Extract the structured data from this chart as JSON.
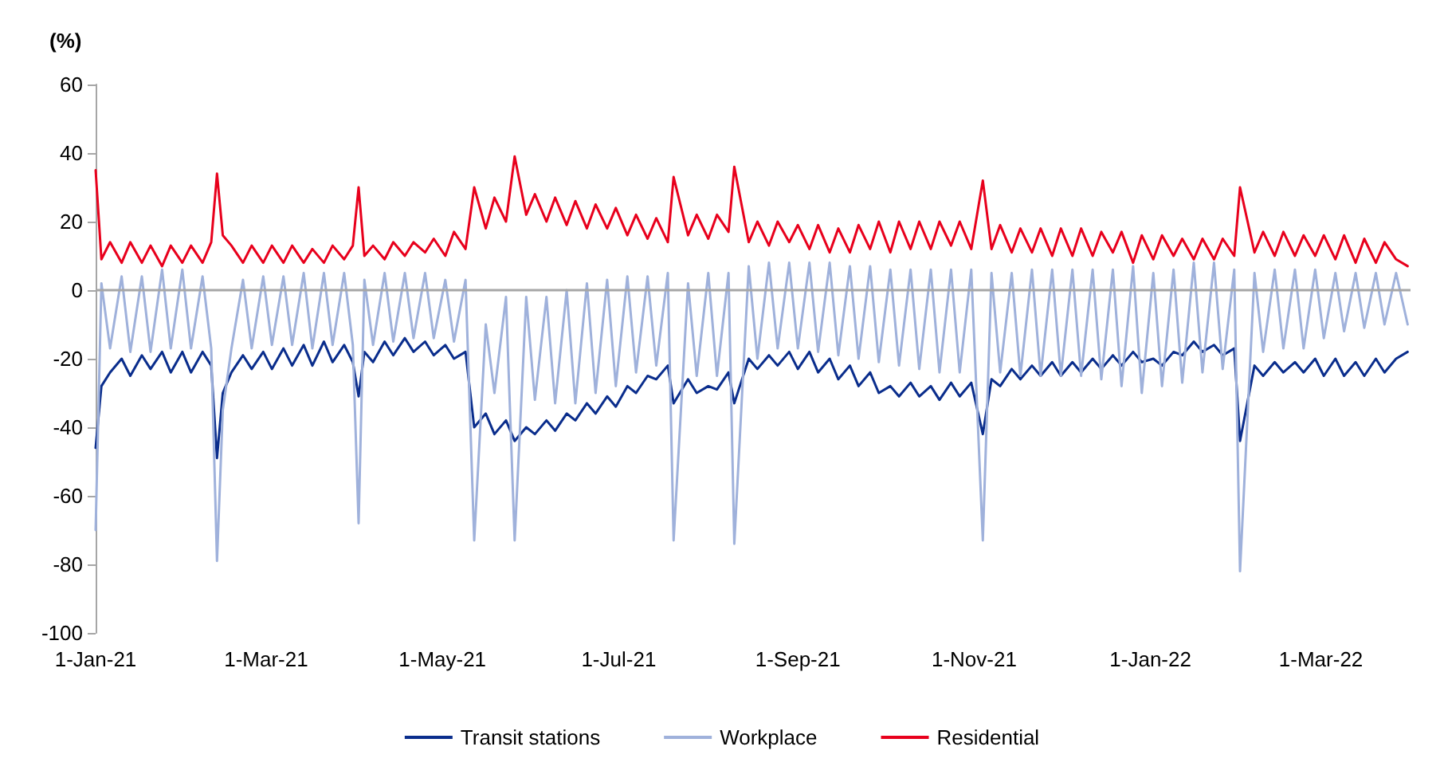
{
  "chart_data": {
    "type": "line",
    "ylabel": "(%)",
    "x": [
      "2021-01-01",
      "2021-01-03",
      "2021-01-06",
      "2021-01-10",
      "2021-01-13",
      "2021-01-17",
      "2021-01-20",
      "2021-01-24",
      "2021-01-27",
      "2021-01-31",
      "2021-02-03",
      "2021-02-07",
      "2021-02-10",
      "2021-02-12",
      "2021-02-14",
      "2021-02-17",
      "2021-02-21",
      "2021-02-24",
      "2021-02-28",
      "2021-03-03",
      "2021-03-07",
      "2021-03-10",
      "2021-03-14",
      "2021-03-17",
      "2021-03-21",
      "2021-03-24",
      "2021-03-28",
      "2021-03-31",
      "2021-04-02",
      "2021-04-04",
      "2021-04-07",
      "2021-04-11",
      "2021-04-14",
      "2021-04-18",
      "2021-04-21",
      "2021-04-25",
      "2021-04-28",
      "2021-05-02",
      "2021-05-05",
      "2021-05-09",
      "2021-05-12",
      "2021-05-16",
      "2021-05-19",
      "2021-05-23",
      "2021-05-26",
      "2021-05-30",
      "2021-06-02",
      "2021-06-06",
      "2021-06-09",
      "2021-06-13",
      "2021-06-16",
      "2021-06-20",
      "2021-06-23",
      "2021-06-27",
      "2021-06-30",
      "2021-07-04",
      "2021-07-07",
      "2021-07-11",
      "2021-07-14",
      "2021-07-18",
      "2021-07-20",
      "2021-07-25",
      "2021-07-28",
      "2021-08-01",
      "2021-08-04",
      "2021-08-08",
      "2021-08-10",
      "2021-08-15",
      "2021-08-18",
      "2021-08-22",
      "2021-08-25",
      "2021-08-29",
      "2021-09-01",
      "2021-09-05",
      "2021-09-08",
      "2021-09-12",
      "2021-09-15",
      "2021-09-19",
      "2021-09-22",
      "2021-09-26",
      "2021-09-29",
      "2021-10-03",
      "2021-10-06",
      "2021-10-10",
      "2021-10-13",
      "2021-10-17",
      "2021-10-20",
      "2021-10-24",
      "2021-10-27",
      "2021-10-31",
      "2021-11-04",
      "2021-11-07",
      "2021-11-10",
      "2021-11-14",
      "2021-11-17",
      "2021-11-21",
      "2021-11-24",
      "2021-11-28",
      "2021-12-01",
      "2021-12-05",
      "2021-12-08",
      "2021-12-12",
      "2021-12-15",
      "2021-12-19",
      "2021-12-22",
      "2021-12-26",
      "2021-12-29",
      "2022-01-02",
      "2022-01-05",
      "2022-01-09",
      "2022-01-12",
      "2022-01-16",
      "2022-01-19",
      "2022-01-23",
      "2022-01-26",
      "2022-01-30",
      "2022-02-01",
      "2022-02-06",
      "2022-02-09",
      "2022-02-13",
      "2022-02-16",
      "2022-02-20",
      "2022-02-23",
      "2022-02-27",
      "2022-03-02",
      "2022-03-06",
      "2022-03-09",
      "2022-03-13",
      "2022-03-16",
      "2022-03-20",
      "2022-03-23",
      "2022-03-27",
      "2022-03-31"
    ],
    "series": [
      {
        "name": "Transit stations",
        "color": "#0a2d8c",
        "values": [
          -46,
          -28,
          -24,
          -20,
          -25,
          -19,
          -23,
          -18,
          -24,
          -18,
          -24,
          -18,
          -22,
          -49,
          -30,
          -24,
          -19,
          -23,
          -18,
          -23,
          -17,
          -22,
          -16,
          -22,
          -15,
          -21,
          -16,
          -21,
          -31,
          -18,
          -21,
          -15,
          -19,
          -14,
          -18,
          -15,
          -19,
          -16,
          -20,
          -18,
          -40,
          -36,
          -42,
          -38,
          -44,
          -40,
          -42,
          -38,
          -41,
          -36,
          -38,
          -33,
          -36,
          -31,
          -34,
          -28,
          -30,
          -25,
          -26,
          -22,
          -33,
          -26,
          -30,
          -28,
          -29,
          -24,
          -33,
          -20,
          -23,
          -19,
          -22,
          -18,
          -23,
          -18,
          -24,
          -20,
          -26,
          -22,
          -28,
          -24,
          -30,
          -28,
          -31,
          -27,
          -31,
          -28,
          -32,
          -27,
          -31,
          -27,
          -42,
          -26,
          -28,
          -23,
          -26,
          -22,
          -25,
          -21,
          -25,
          -21,
          -24,
          -20,
          -23,
          -19,
          -22,
          -18,
          -21,
          -20,
          -22,
          -18,
          -19,
          -15,
          -18,
          -16,
          -19,
          -17,
          -44,
          -22,
          -25,
          -21,
          -24,
          -21,
          -24,
          -20,
          -25,
          -20,
          -25,
          -21,
          -25,
          -20,
          -24,
          -20,
          -18
        ]
      },
      {
        "name": "Workplace",
        "color": "#9fb1db",
        "values": [
          -70,
          2,
          -17,
          4,
          -18,
          4,
          -18,
          6,
          -17,
          6,
          -17,
          4,
          -17,
          -79,
          -35,
          -17,
          3,
          -17,
          4,
          -16,
          4,
          -16,
          5,
          -17,
          5,
          -16,
          5,
          -16,
          -68,
          3,
          -16,
          5,
          -15,
          5,
          -14,
          5,
          -14,
          3,
          -15,
          3,
          -73,
          -10,
          -30,
          -2,
          -73,
          -2,
          -32,
          -2,
          -33,
          0,
          -33,
          2,
          -30,
          3,
          -28,
          4,
          -24,
          4,
          -22,
          5,
          -73,
          2,
          -25,
          5,
          -25,
          5,
          -74,
          7,
          -20,
          8,
          -17,
          8,
          -17,
          8,
          -18,
          8,
          -19,
          7,
          -20,
          7,
          -21,
          6,
          -22,
          6,
          -23,
          6,
          -24,
          6,
          -24,
          6,
          -73,
          5,
          -24,
          5,
          -25,
          6,
          -25,
          6,
          -25,
          6,
          -25,
          6,
          -26,
          6,
          -28,
          7,
          -30,
          5,
          -28,
          6,
          -27,
          8,
          -24,
          8,
          -23,
          6,
          -82,
          5,
          -18,
          6,
          -17,
          6,
          -17,
          6,
          -14,
          5,
          -12,
          5,
          -11,
          5,
          -10,
          5,
          -10
        ]
      },
      {
        "name": "Residential",
        "color": "#e8001c",
        "values": [
          35,
          9,
          14,
          8,
          14,
          8,
          13,
          7,
          13,
          8,
          13,
          8,
          14,
          34,
          16,
          13,
          8,
          13,
          8,
          13,
          8,
          13,
          8,
          12,
          8,
          13,
          9,
          13,
          30,
          10,
          13,
          9,
          14,
          10,
          14,
          11,
          15,
          10,
          17,
          12,
          30,
          18,
          27,
          20,
          39,
          22,
          28,
          20,
          27,
          19,
          26,
          18,
          25,
          18,
          24,
          16,
          22,
          15,
          21,
          14,
          33,
          16,
          22,
          15,
          22,
          17,
          36,
          14,
          20,
          13,
          20,
          14,
          19,
          12,
          19,
          11,
          18,
          11,
          19,
          12,
          20,
          11,
          20,
          12,
          20,
          12,
          20,
          13,
          20,
          12,
          32,
          12,
          19,
          11,
          18,
          11,
          18,
          10,
          18,
          10,
          18,
          10,
          17,
          11,
          17,
          8,
          16,
          9,
          16,
          10,
          15,
          9,
          15,
          9,
          15,
          10,
          30,
          11,
          17,
          10,
          17,
          10,
          16,
          10,
          16,
          9,
          16,
          8,
          15,
          8,
          14,
          9,
          7
        ]
      }
    ],
    "xlim": [
      "2021-01-01",
      "2022-04-01"
    ],
    "xticks": [
      {
        "value": "2021-01-01",
        "label": "1-Jan-21"
      },
      {
        "value": "2021-03-01",
        "label": "1-Mar-21"
      },
      {
        "value": "2021-05-01",
        "label": "1-May-21"
      },
      {
        "value": "2021-07-01",
        "label": "1-Jul-21"
      },
      {
        "value": "2021-09-01",
        "label": "1-Sep-21"
      },
      {
        "value": "2021-11-01",
        "label": "1-Nov-21"
      },
      {
        "value": "2022-01-01",
        "label": "1-Jan-22"
      },
      {
        "value": "2022-03-01",
        "label": "1-Mar-22"
      }
    ],
    "ylim": [
      -100,
      60
    ],
    "yticks": [
      -100,
      -80,
      -60,
      -40,
      -20,
      0,
      20,
      40,
      60
    ],
    "ref_lines": [
      {
        "axis": "y",
        "value": 0,
        "color": "#a6a6a6"
      }
    ],
    "grid": false,
    "legend": "bottom",
    "marker": "none",
    "line_style": "solid"
  }
}
